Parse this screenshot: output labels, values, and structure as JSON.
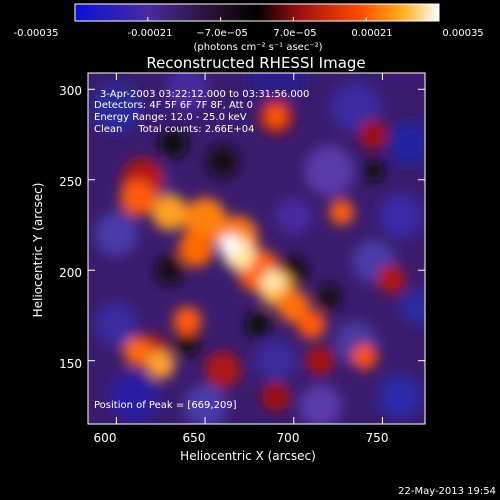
{
  "colorbar": {
    "ticks": [
      "-0.00035",
      "-0.00021",
      "−7.0e−05",
      "7.0e−05",
      "0.00021",
      "0.00035"
    ],
    "tick_values": [
      -0.00035,
      -0.00021,
      -7e-05,
      7e-05,
      0.00021,
      0.00035
    ],
    "range": [
      -0.00035,
      0.00035
    ],
    "unit_label": "(photons cm⁻² s⁻¹ asec⁻²)"
  },
  "chart_data": {
    "type": "heatmap",
    "title": "Reconstructed RHESSI Image",
    "xlabel": "Heliocentric X (arcsec)",
    "ylabel": "Heliocentric Y (arcsec)",
    "xlim": [
      584,
      774
    ],
    "ylim": [
      115,
      309
    ],
    "xticks": [
      600,
      650,
      700,
      750
    ],
    "yticks": [
      150,
      200,
      250,
      300
    ],
    "peak": [
      669,
      209
    ],
    "colorscale": [
      "#0a10d8",
      "#4a2aa0",
      "#2a1030",
      "#000000",
      "#a01010",
      "#ff4a00",
      "#ffb020",
      "#ffffff"
    ],
    "annotations": {
      "time": "3-Apr-2003 03:22:12.000 to 03:31:56.000",
      "detectors": "Detectors: 4F 5F 6F 7F 8F, Att 0",
      "energy": "Energy Range: 12.0 - 25.0 keV",
      "clean": "Clean     Total counts: 2.66E+04",
      "peak_label": "Position of Peak = [669,209]"
    }
  },
  "footer": {
    "timestamp": "22-May-2013 19:54"
  }
}
